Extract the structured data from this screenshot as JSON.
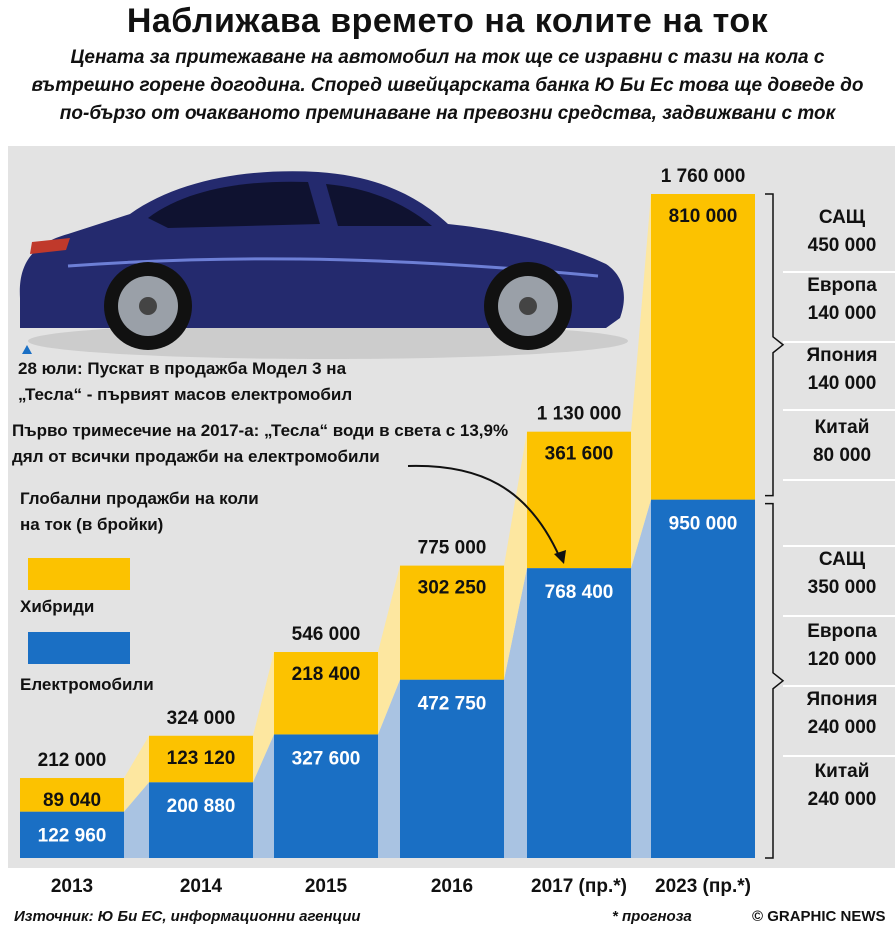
{
  "title": "Наближава времето на колите на ток",
  "subtitle": "Цената за притежаване на автомобил на ток ще се изравни с тази на кола с вътрешно горене догодина. Според швейцарската банка Ю Би Ес това ще доведе до по-бързо от очакваното преминаване на превозни средства, задвижвани с ток",
  "colors": {
    "hybrid": "#fcc200",
    "electric": "#1a6fc4",
    "hybrid_light": "#fde7a0",
    "electric_light": "#a9c3e2",
    "panel": "#e3e3e3"
  },
  "chart_data": {
    "type": "bar",
    "stacked": true,
    "categories": [
      "2013",
      "2014",
      "2015",
      "2016",
      "2017 (пр.*)",
      "2023 (пр.*)"
    ],
    "series": [
      {
        "name": "Електромобили",
        "values": [
          122960,
          200880,
          327600,
          472750,
          768400,
          950000
        ],
        "labels": [
          "122 960",
          "200 880",
          "327 600",
          "472 750",
          "768 400",
          "950  000"
        ]
      },
      {
        "name": "Хибриди",
        "values": [
          89040,
          123120,
          218400,
          302250,
          361600,
          810000
        ],
        "labels": [
          "89 040",
          "123 120",
          "218 400",
          "302 250",
          "361 600",
          "810 000"
        ]
      }
    ],
    "totals": [
      212000,
      324000,
      546000,
      775000,
      1130000,
      1760000
    ],
    "total_labels": [
      "212 000",
      "324 000",
      "546 000",
      "775 000",
      "1 130 000",
      "1 760 000"
    ],
    "legend_title": "Глобални продажби на коли на ток (в бройки)",
    "ylim": [
      0,
      1760000
    ]
  },
  "annotations": {
    "tesla_launch": "28 юли: Пускат в продажба Модел 3 на „Тесла“ - първият масов електромобил",
    "tesla_share": "Първо тримесечие на 2017-а: „Тесла“ води в света с 13,9% дял от всички продажби на електромобили"
  },
  "breakdown": {
    "hybrid": [
      {
        "region": "САЩ",
        "value": "450 000"
      },
      {
        "region": "Европа",
        "value": "140 000"
      },
      {
        "region": "Япония",
        "value": "140 000"
      },
      {
        "region": "Китай",
        "value": "80 000"
      }
    ],
    "electric": [
      {
        "region": "САЩ",
        "value": "350 000"
      },
      {
        "region": "Европа",
        "value": "120 000"
      },
      {
        "region": "Япония",
        "value": "240 000"
      },
      {
        "region": "Китай",
        "value": "240 000"
      }
    ]
  },
  "footer": {
    "source": "Източник: Ю Би ЕС, информационни агенции",
    "forecast_note": "* прогноза",
    "credit": "© GRAPHIC NEWS"
  }
}
